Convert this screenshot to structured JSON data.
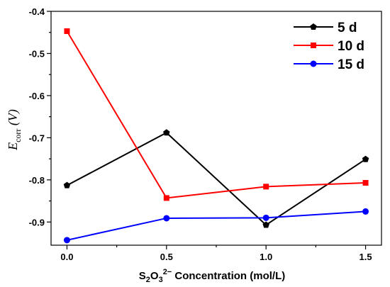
{
  "chart_data": {
    "type": "line",
    "x": [
      0.0,
      0.5,
      1.0,
      1.5
    ],
    "x_tick_labels": [
      "0.0",
      "0.5",
      "1.0",
      "1.5"
    ],
    "y_tick_values": [
      -0.9,
      -0.8,
      -0.7,
      -0.6,
      -0.5,
      -0.4
    ],
    "y_tick_labels": [
      "-0.9",
      "-0.8",
      "-0.7",
      "-0.6",
      "-0.5",
      "-0.4"
    ],
    "xlim": [
      -0.08,
      1.58
    ],
    "ylim": [
      -0.955,
      -0.4
    ],
    "xlabel": {
      "s": "S",
      "sub1": "2",
      "o": "O",
      "sub2": "3",
      "sup": "2−",
      "rest": " Concentration (mol/L)"
    },
    "ylabel": {
      "main": "E",
      "sub": "corr",
      "unit": " (V)"
    },
    "legend_placement": "top-right",
    "grid": false,
    "series": [
      {
        "name": "5 d",
        "color": "#000000",
        "marker": "pentagon",
        "values": [
          -0.813,
          -0.688,
          -0.907,
          -0.751
        ]
      },
      {
        "name": "10 d",
        "color": "#ff0000",
        "marker": "square",
        "values": [
          -0.447,
          -0.843,
          -0.816,
          -0.807
        ]
      },
      {
        "name": "15 d",
        "color": "#0000ff",
        "marker": "circle",
        "values": [
          -0.943,
          -0.891,
          -0.89,
          -0.875
        ]
      }
    ]
  }
}
